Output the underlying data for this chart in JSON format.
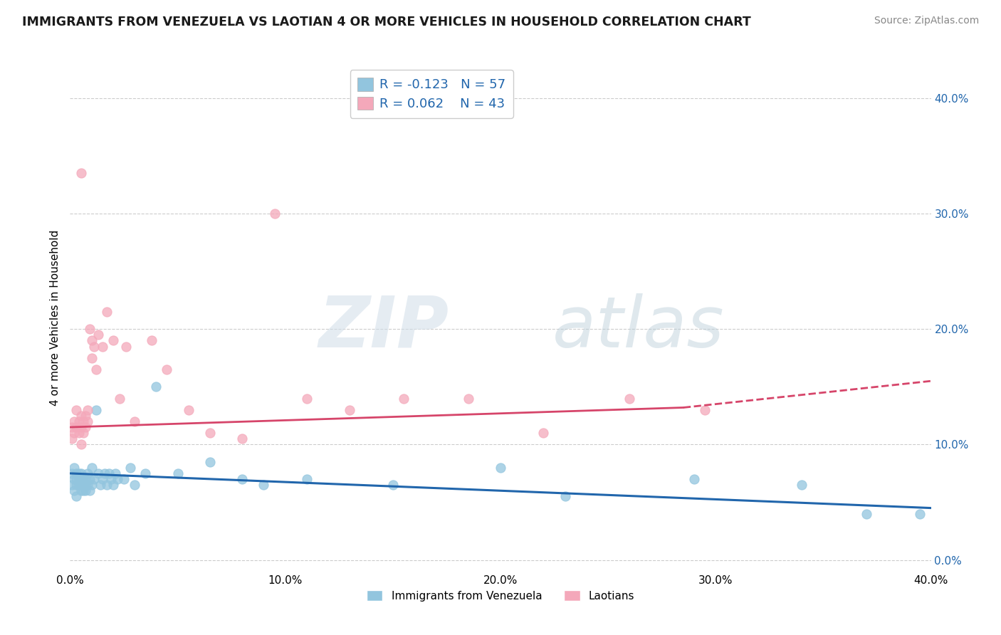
{
  "title": "IMMIGRANTS FROM VENEZUELA VS LAOTIAN 4 OR MORE VEHICLES IN HOUSEHOLD CORRELATION CHART",
  "source_text": "Source: ZipAtlas.com",
  "ylabel": "4 or more Vehicles in Household",
  "xmin": 0.0,
  "xmax": 0.4,
  "ymin": -0.01,
  "ymax": 0.43,
  "ytick_vals": [
    0.0,
    0.1,
    0.2,
    0.3,
    0.4
  ],
  "ytick_labels_right": [
    "0.0%",
    "10.0%",
    "20.0%",
    "30.0%",
    "40.0%"
  ],
  "xtick_vals": [
    0.0,
    0.1,
    0.2,
    0.3,
    0.4
  ],
  "xtick_labels": [
    "0.0%",
    "10.0%",
    "20.0%",
    "30.0%",
    "40.0%"
  ],
  "legend_r1": "R = -0.123",
  "legend_n1": "N = 57",
  "legend_r2": "R = 0.062",
  "legend_n2": "N = 43",
  "legend_label1": "Immigrants from Venezuela",
  "legend_label2": "Laotians",
  "color_blue": "#92C5DE",
  "color_pink": "#F4A8BA",
  "color_blue_line": "#2166AC",
  "color_pink_line": "#D6456A",
  "watermark_zip": "ZIP",
  "watermark_atlas": "atlas",
  "grid_color": "#cccccc",
  "blue_scatter_x": [
    0.001,
    0.001,
    0.002,
    0.002,
    0.002,
    0.003,
    0.003,
    0.003,
    0.003,
    0.004,
    0.004,
    0.004,
    0.005,
    0.005,
    0.005,
    0.005,
    0.006,
    0.006,
    0.006,
    0.007,
    0.007,
    0.007,
    0.008,
    0.008,
    0.009,
    0.009,
    0.01,
    0.01,
    0.011,
    0.012,
    0.013,
    0.014,
    0.015,
    0.016,
    0.017,
    0.018,
    0.019,
    0.02,
    0.021,
    0.022,
    0.025,
    0.028,
    0.03,
    0.035,
    0.04,
    0.05,
    0.065,
    0.08,
    0.09,
    0.11,
    0.15,
    0.2,
    0.23,
    0.29,
    0.34,
    0.37,
    0.395
  ],
  "blue_scatter_y": [
    0.065,
    0.075,
    0.07,
    0.06,
    0.08,
    0.065,
    0.07,
    0.075,
    0.055,
    0.07,
    0.065,
    0.075,
    0.07,
    0.06,
    0.075,
    0.065,
    0.07,
    0.065,
    0.06,
    0.07,
    0.065,
    0.06,
    0.075,
    0.065,
    0.07,
    0.06,
    0.08,
    0.065,
    0.07,
    0.13,
    0.075,
    0.065,
    0.07,
    0.075,
    0.065,
    0.075,
    0.07,
    0.065,
    0.075,
    0.07,
    0.07,
    0.08,
    0.065,
    0.075,
    0.15,
    0.075,
    0.085,
    0.07,
    0.065,
    0.07,
    0.065,
    0.08,
    0.055,
    0.07,
    0.065,
    0.04,
    0.04
  ],
  "pink_scatter_x": [
    0.001,
    0.001,
    0.002,
    0.002,
    0.003,
    0.003,
    0.004,
    0.004,
    0.005,
    0.005,
    0.005,
    0.006,
    0.006,
    0.007,
    0.007,
    0.008,
    0.008,
    0.009,
    0.01,
    0.01,
    0.011,
    0.012,
    0.013,
    0.015,
    0.017,
    0.02,
    0.023,
    0.026,
    0.03,
    0.038,
    0.045,
    0.055,
    0.065,
    0.08,
    0.095,
    0.11,
    0.13,
    0.155,
    0.185,
    0.22,
    0.26,
    0.295,
    0.005
  ],
  "pink_scatter_y": [
    0.115,
    0.105,
    0.12,
    0.11,
    0.13,
    0.115,
    0.12,
    0.11,
    0.125,
    0.115,
    0.1,
    0.12,
    0.11,
    0.125,
    0.115,
    0.13,
    0.12,
    0.2,
    0.175,
    0.19,
    0.185,
    0.165,
    0.195,
    0.185,
    0.215,
    0.19,
    0.14,
    0.185,
    0.12,
    0.19,
    0.165,
    0.13,
    0.11,
    0.105,
    0.3,
    0.14,
    0.13,
    0.14,
    0.14,
    0.11,
    0.14,
    0.13,
    0.335
  ],
  "blue_line_x": [
    0.0,
    0.4
  ],
  "blue_line_y": [
    0.075,
    0.045
  ],
  "pink_line_x": [
    0.0,
    0.285,
    0.4
  ],
  "pink_line_y": [
    0.115,
    0.132,
    0.155
  ]
}
